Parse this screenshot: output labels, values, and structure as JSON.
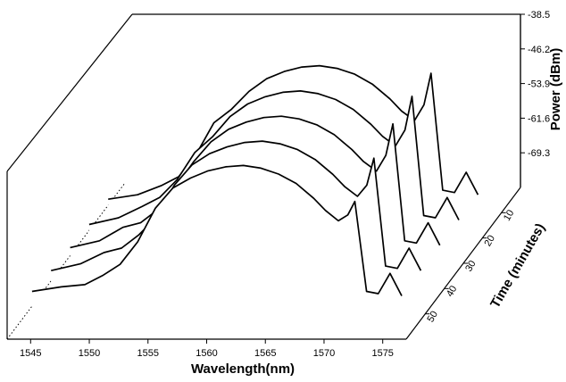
{
  "chart_data": {
    "type": "line",
    "chart_style": "3d-waterfall",
    "xlabel": "Wavelength(nm)",
    "ylabel": "Power (dBm)",
    "zlabel": "Time (minutes)",
    "xlim": [
      1543,
      1577
    ],
    "xticks": [
      "1545",
      "1550",
      "1555",
      "1560",
      "1565",
      "1570",
      "1575"
    ],
    "yticks": [
      "-38.5",
      "-46.2",
      "-53.9",
      "-61.6",
      "-69.3"
    ],
    "ylim": [
      -77,
      -38.5
    ],
    "zticks": [
      "10",
      "20",
      "30",
      "40",
      "50"
    ],
    "grid": false,
    "series": [
      {
        "time": 50,
        "wavelength": [
          1543.5,
          1546,
          1548,
          1549.5,
          1551,
          1552.5,
          1554,
          1555.5,
          1557,
          1558.5,
          1560,
          1561.5,
          1563,
          1564.5,
          1566,
          1567.5,
          1568.5,
          1569.6,
          1570.4,
          1571,
          1572,
          1573,
          1574,
          1575
        ],
        "power": [
          -72,
          -71,
          -70.5,
          -68.5,
          -66,
          -61,
          -53.5,
          -49,
          -46.8,
          -45.2,
          -44.3,
          -44,
          -44.6,
          -45.9,
          -48,
          -51.3,
          -54,
          -56.3,
          -55,
          -52,
          -72,
          -72.5,
          -68,
          -73
        ]
      },
      {
        "time": 40,
        "wavelength": [
          1543.5,
          1546,
          1548,
          1549.5,
          1551,
          1552.5,
          1554,
          1555.5,
          1557,
          1558.5,
          1560,
          1561.5,
          1563,
          1564.5,
          1566,
          1567.5,
          1568.5,
          1569.6,
          1570.4,
          1571,
          1572,
          1573,
          1574,
          1575
        ],
        "power": [
          -73,
          -71.5,
          -69,
          -68,
          -65,
          -61,
          -54,
          -49.5,
          -47,
          -45.5,
          -44.5,
          -44.2,
          -44.8,
          -46.1,
          -48.3,
          -51.6,
          -54.3,
          -56.5,
          -54,
          -48,
          -72,
          -72.5,
          -68,
          -73
        ]
      },
      {
        "time": 30,
        "wavelength": [
          1543.5,
          1546,
          1548,
          1549.5,
          1551,
          1552.5,
          1554,
          1555.5,
          1557,
          1558.5,
          1560,
          1561.5,
          1563,
          1564.5,
          1566,
          1567.5,
          1568.5,
          1569.6,
          1570.4,
          1571,
          1572,
          1573,
          1574,
          1575
        ],
        "power": [
          -73.5,
          -72,
          -69,
          -68,
          -65,
          -60,
          -54.5,
          -50,
          -47.2,
          -45.6,
          -44.6,
          -44.3,
          -44.9,
          -46.2,
          -48.4,
          -51.7,
          -54.4,
          -56.5,
          -53,
          -46,
          -72,
          -72.5,
          -68,
          -73
        ]
      },
      {
        "time": 20,
        "wavelength": [
          1543.5,
          1546,
          1548,
          1549.5,
          1551,
          1552.5,
          1554,
          1555.5,
          1557,
          1558.5,
          1560,
          1561.5,
          1563,
          1564.5,
          1566,
          1567.5,
          1568.5,
          1569.6,
          1570.4,
          1571,
          1572,
          1573,
          1574,
          1575
        ],
        "power": [
          -74,
          -72.5,
          -70,
          -68,
          -64,
          -58,
          -54.5,
          -50,
          -47.2,
          -45.6,
          -44.6,
          -44.3,
          -44.9,
          -46.2,
          -48.4,
          -51.7,
          -54.4,
          -56.5,
          -53,
          -45.5,
          -72,
          -72.5,
          -68,
          -73
        ]
      },
      {
        "time": 10,
        "wavelength": [
          1543.5,
          1546,
          1548,
          1549.5,
          1551,
          1552.5,
          1554,
          1555.5,
          1557,
          1558.5,
          1560,
          1561.5,
          1563,
          1564.5,
          1566,
          1567.5,
          1568.5,
          1569.6,
          1570.4,
          1571,
          1572,
          1573,
          1574,
          1575
        ],
        "power": [
          -74,
          -73,
          -71,
          -69,
          -64,
          -57,
          -54,
          -50,
          -47.2,
          -45.6,
          -44.6,
          -44.3,
          -44.9,
          -46.2,
          -48.4,
          -51.7,
          -54.4,
          -56.5,
          -53,
          -46,
          -72,
          -72.5,
          -68,
          -73
        ]
      }
    ]
  }
}
